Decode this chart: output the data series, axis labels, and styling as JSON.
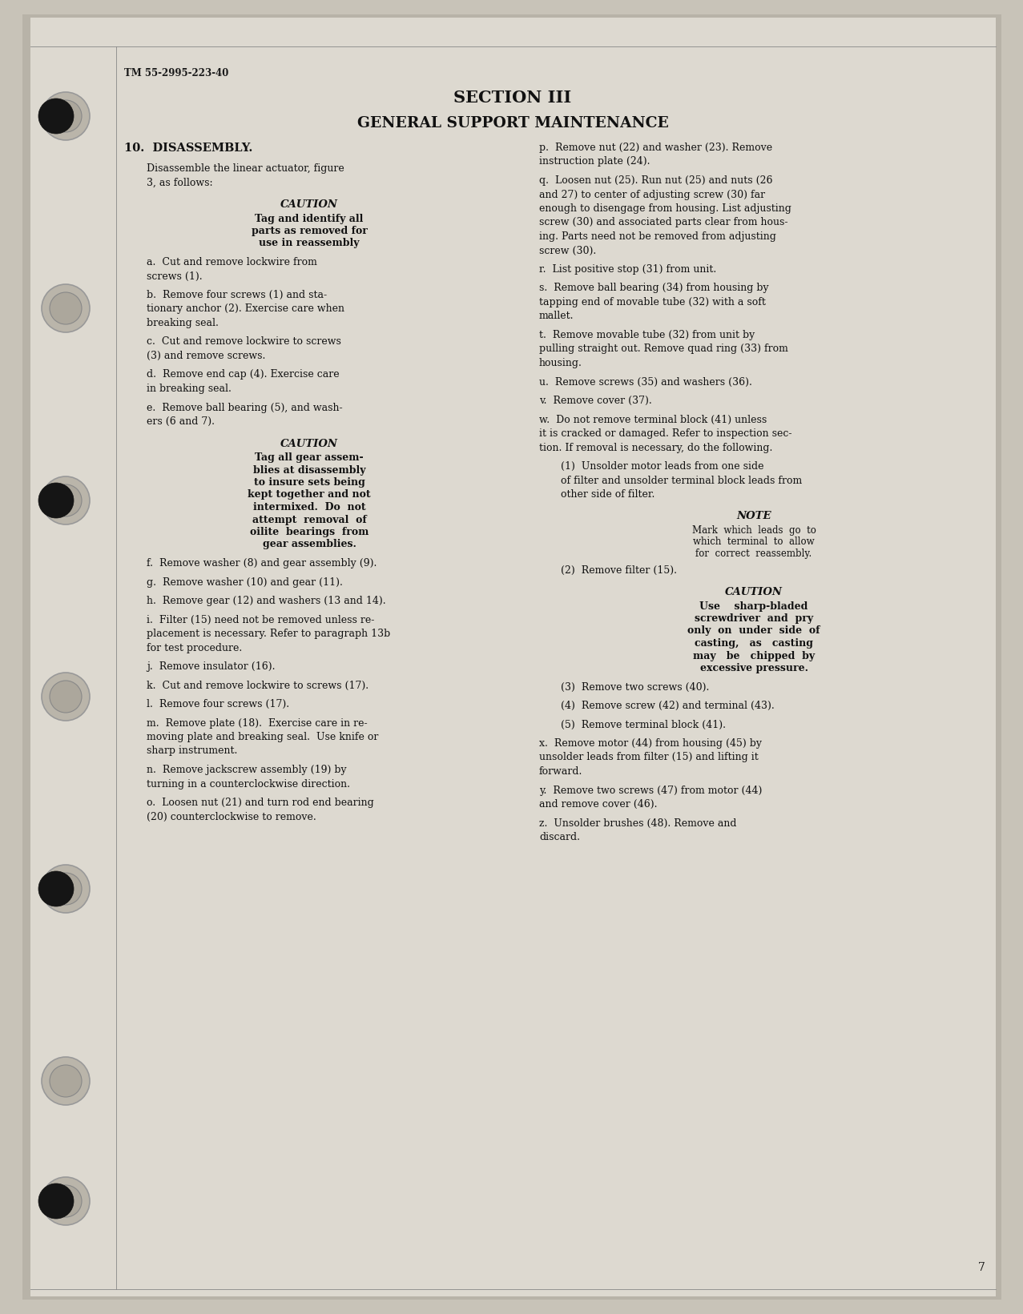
{
  "bg_color": "#d8d3c8",
  "page_bg": "#cdc8bc",
  "text_color": "#1a1a1a",
  "header_text": "TM 55-2995-223-40",
  "section_title": "SECTION III",
  "section_subtitle": "GENERAL SUPPORT MAINTENANCE",
  "page_number": "7"
}
